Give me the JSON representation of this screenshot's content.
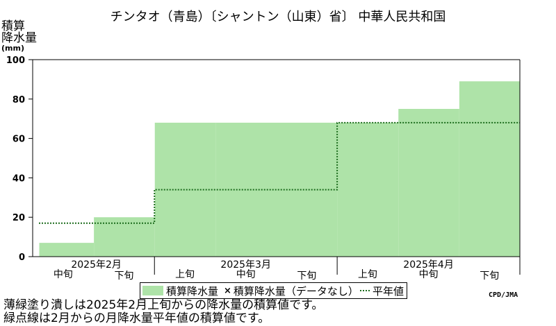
{
  "chart_data": {
    "type": "area",
    "title": "チンタオ（青島）〔シャントン（山東）省〕 中華人民共和国",
    "ylabel": "積算\n降水量",
    "yunit": "(mm)",
    "ylim": [
      0,
      100
    ],
    "yticks": [
      0,
      20,
      40,
      60,
      80,
      100
    ],
    "x": [
      "2025年2月 中旬",
      "2025年2月 下旬",
      "2025年3月 上旬",
      "2025年3月 中旬",
      "2025年3月 下旬",
      "2025年4月 上旬",
      "2025年4月 中旬",
      "2025年4月 下旬"
    ],
    "xtick_labels": [
      "中旬",
      "下旬",
      "上旬",
      "中旬",
      "下旬",
      "上旬",
      "中旬",
      "下旬"
    ],
    "month_labels": [
      {
        "label": "2025年2月",
        "start": 0,
        "span": 2
      },
      {
        "label": "2025年3月",
        "start": 2,
        "span": 3
      },
      {
        "label": "2025年4月",
        "start": 5,
        "span": 3
      }
    ],
    "series": [
      {
        "name": "積算降水量",
        "kind": "filled-step",
        "color": "#aee3a8",
        "values": [
          7,
          20,
          68,
          68,
          68,
          68,
          75,
          89
        ]
      },
      {
        "name": "平年値",
        "kind": "dotted-step",
        "color": "#1a6b1a",
        "values": [
          17,
          17,
          34,
          34,
          34,
          68,
          68,
          68
        ]
      }
    ],
    "grid": false,
    "legend_position": "bottom"
  },
  "legend": {
    "observed": "積算降水量",
    "marker": "×",
    "missing": "積算降水量（データなし）",
    "normal": "平年値"
  },
  "credit": "CPD/JMA",
  "notes": [
    "薄緑塗り潰しは2025年2月上旬からの降水量の積算値です。",
    "緑点線は2月からの月降水量平年値の積算値です。"
  ]
}
